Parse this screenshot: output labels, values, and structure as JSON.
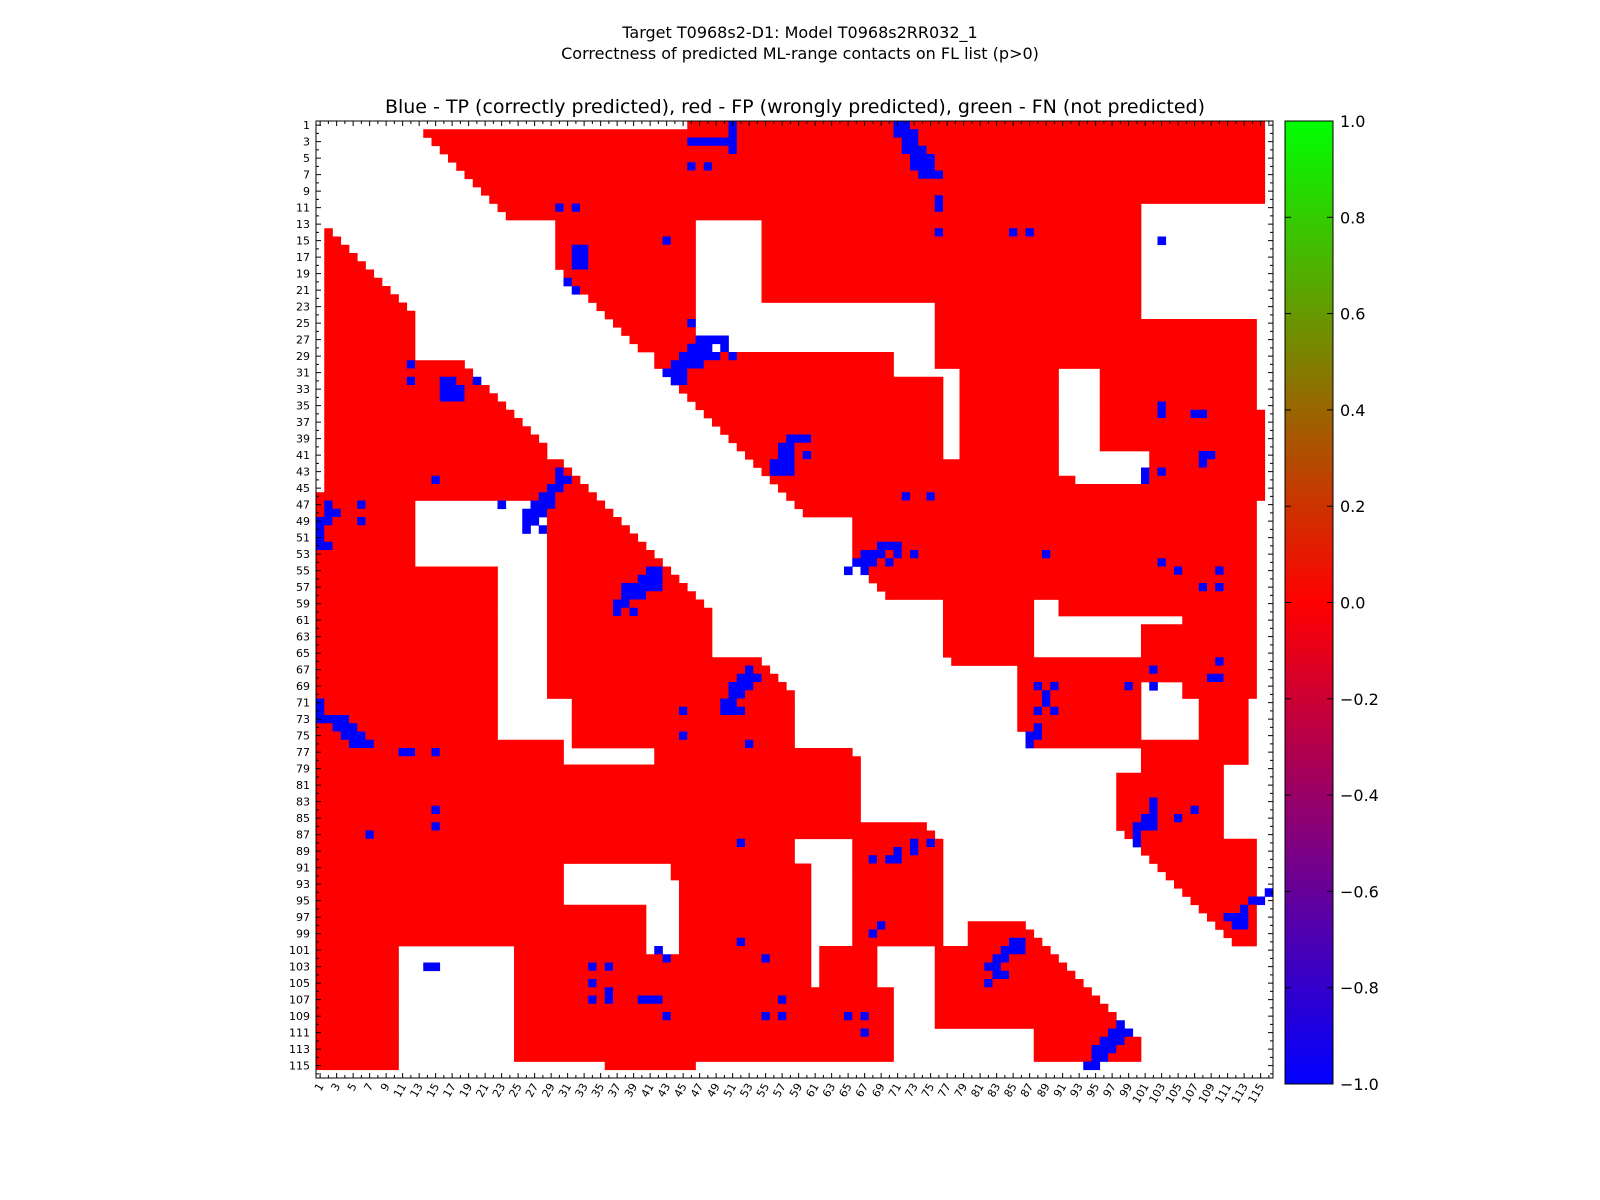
{
  "figure": {
    "title_line1": "Target T0968s2-D1: Model T0968s2RR032_1",
    "title_line2": "Correctness of predicted ML-range contacts on FL list (p>0)"
  },
  "chart_data": {
    "type": "heatmap",
    "title": "Blue - TP (correctly predicted), red - FP (wrongly predicted), green - FN (not predicted)",
    "n_residues": 116,
    "x_tick_labels": [
      "1",
      "3",
      "5",
      "7",
      "9",
      "11",
      "13",
      "15",
      "17",
      "19",
      "21",
      "23",
      "25",
      "27",
      "29",
      "31",
      "33",
      "35",
      "37",
      "39",
      "41",
      "43",
      "45",
      "47",
      "49",
      "51",
      "53",
      "55",
      "57",
      "59",
      "61",
      "63",
      "65",
      "67",
      "69",
      "71",
      "73",
      "75",
      "77",
      "79",
      "81",
      "83",
      "85",
      "87",
      "89",
      "91",
      "93",
      "95",
      "97",
      "99",
      "101",
      "103",
      "105",
      "107",
      "109",
      "111",
      "113",
      "115"
    ],
    "y_tick_labels": [
      "1",
      "3",
      "5",
      "7",
      "9",
      "11",
      "13",
      "15",
      "17",
      "19",
      "21",
      "23",
      "25",
      "27",
      "29",
      "31",
      "33",
      "35",
      "37",
      "39",
      "41",
      "43",
      "45",
      "47",
      "49",
      "51",
      "53",
      "55",
      "57",
      "59",
      "61",
      "63",
      "65",
      "67",
      "69",
      "71",
      "73",
      "75",
      "77",
      "79",
      "81",
      "83",
      "85",
      "87",
      "89",
      "91",
      "93",
      "95",
      "97",
      "99",
      "101",
      "103",
      "105",
      "107",
      "109",
      "111",
      "113",
      "115"
    ],
    "colorbar": {
      "min": -1.0,
      "max": 1.0,
      "tick_labels": [
        "1.0",
        "0.8",
        "0.6",
        "0.4",
        "0.2",
        "0.0",
        "−0.2",
        "−0.4",
        "−0.6",
        "−0.8",
        "−1.0"
      ],
      "colors": [
        "#0000ff",
        "#ff0000",
        "#00ff00"
      ]
    },
    "legend": {
      "TP": {
        "value": -1,
        "color": "#0000ff"
      },
      "FP": {
        "value": 0,
        "color": "#ff0000"
      },
      "FN": {
        "value": 1,
        "color": "#00ff00"
      }
    },
    "fp_blocks": [
      [
        13,
        2,
        30,
        12
      ],
      [
        2,
        13,
        12,
        30
      ],
      [
        2,
        14,
        12,
        60
      ],
      [
        14,
        2,
        60,
        12
      ],
      [
        13,
        30,
        28,
        46
      ],
      [
        30,
        13,
        46,
        28
      ],
      [
        2,
        62,
        8,
        115
      ],
      [
        62,
        2,
        115,
        8
      ],
      [
        8,
        55,
        22,
        78
      ],
      [
        55,
        8,
        78,
        22
      ],
      [
        10,
        76,
        30,
        100
      ],
      [
        76,
        10,
        100,
        30
      ],
      [
        25,
        96,
        40,
        114
      ],
      [
        96,
        25,
        114,
        40
      ],
      [
        29,
        42,
        48,
        70
      ],
      [
        42,
        29,
        70,
        48
      ],
      [
        32,
        56,
        44,
        76
      ],
      [
        56,
        32,
        76,
        44
      ],
      [
        36,
        102,
        46,
        115
      ],
      [
        102,
        36,
        115,
        46
      ],
      [
        44,
        66,
        58,
        92
      ],
      [
        66,
        44,
        92,
        58
      ],
      [
        45,
        91,
        60,
        106
      ],
      [
        91,
        45,
        106,
        60
      ],
      [
        42,
        71,
        54,
        87
      ],
      [
        71,
        42,
        87,
        54
      ],
      [
        55,
        32,
        66,
        44
      ],
      [
        32,
        55,
        44,
        66
      ],
      [
        58,
        77,
        66,
        87
      ],
      [
        77,
        58,
        87,
        66
      ],
      [
        62,
        101,
        68,
        113
      ],
      [
        101,
        62,
        113,
        68
      ],
      [
        65,
        108,
        78,
        113
      ],
      [
        108,
        65,
        78,
        113
      ],
      [
        66,
        45,
        78,
        56
      ],
      [
        45,
        66,
        56,
        78
      ],
      [
        68,
        87,
        76,
        100
      ],
      [
        87,
        68,
        100,
        76
      ],
      [
        76,
        101,
        90,
        110
      ],
      [
        101,
        76,
        110,
        90
      ],
      [
        86,
        66,
        100,
        75
      ],
      [
        66,
        86,
        75,
        100
      ],
      [
        89,
        111,
        98,
        113
      ],
      [
        111,
        89,
        113,
        98
      ],
      [
        98,
        80,
        106,
        88
      ],
      [
        80,
        98,
        88,
        106
      ],
      [
        100,
        88,
        114,
        100
      ],
      [
        88,
        100,
        100,
        114
      ],
      [
        102,
        36,
        114,
        56
      ],
      [
        36,
        102,
        56,
        114
      ],
      [
        79,
        30,
        90,
        44
      ],
      [
        30,
        79,
        44,
        90
      ],
      [
        106,
        56,
        114,
        70
      ],
      [
        56,
        106,
        70,
        114
      ],
      [
        46,
        1,
        115,
        10
      ],
      [
        1,
        46,
        10,
        115
      ]
    ],
    "tp_cells": [
      [
        1,
        51
      ],
      [
        1,
        71
      ],
      [
        1,
        72
      ],
      [
        2,
        51
      ],
      [
        2,
        71
      ],
      [
        2,
        72
      ],
      [
        2,
        73
      ],
      [
        3,
        46
      ],
      [
        3,
        47
      ],
      [
        3,
        48
      ],
      [
        3,
        49
      ],
      [
        3,
        50
      ],
      [
        3,
        51
      ],
      [
        3,
        72
      ],
      [
        3,
        73
      ],
      [
        4,
        51
      ],
      [
        4,
        72
      ],
      [
        4,
        73
      ],
      [
        4,
        74
      ],
      [
        5,
        73
      ],
      [
        5,
        74
      ],
      [
        5,
        75
      ],
      [
        6,
        46
      ],
      [
        6,
        48
      ],
      [
        6,
        73
      ],
      [
        6,
        74
      ],
      [
        6,
        75
      ],
      [
        7,
        74
      ],
      [
        7,
        75
      ],
      [
        7,
        76
      ],
      [
        10,
        76
      ],
      [
        11,
        30
      ],
      [
        11,
        32
      ],
      [
        11,
        76
      ],
      [
        14,
        76
      ],
      [
        14,
        85
      ],
      [
        14,
        87
      ],
      [
        15,
        43
      ],
      [
        15,
        103
      ],
      [
        16,
        32
      ],
      [
        16,
        33
      ],
      [
        17,
        32
      ],
      [
        17,
        33
      ],
      [
        18,
        32
      ],
      [
        18,
        33
      ],
      [
        20,
        31
      ],
      [
        21,
        32
      ],
      [
        25,
        46
      ],
      [
        27,
        47
      ],
      [
        27,
        48
      ],
      [
        27,
        49
      ],
      [
        27,
        50
      ],
      [
        28,
        46
      ],
      [
        28,
        47
      ],
      [
        28,
        48
      ],
      [
        28,
        50
      ],
      [
        29,
        45
      ],
      [
        29,
        46
      ],
      [
        29,
        47
      ],
      [
        29,
        48
      ],
      [
        29,
        49
      ],
      [
        29,
        51
      ],
      [
        30,
        44
      ],
      [
        30,
        45
      ],
      [
        30,
        46
      ],
      [
        30,
        47
      ],
      [
        31,
        43
      ],
      [
        31,
        44
      ],
      [
        31,
        45
      ],
      [
        32,
        44
      ],
      [
        32,
        45
      ],
      [
        30,
        12
      ],
      [
        32,
        12
      ],
      [
        32,
        16
      ],
      [
        32,
        17
      ],
      [
        32,
        20
      ],
      [
        33,
        16
      ],
      [
        33,
        17
      ],
      [
        33,
        18
      ],
      [
        34,
        16
      ],
      [
        34,
        17
      ],
      [
        34,
        18
      ],
      [
        39,
        58
      ],
      [
        39,
        59
      ],
      [
        39,
        60
      ],
      [
        40,
        57
      ],
      [
        40,
        58
      ],
      [
        41,
        57
      ],
      [
        41,
        58
      ],
      [
        41,
        60
      ],
      [
        42,
        56
      ],
      [
        42,
        57
      ],
      [
        42,
        58
      ],
      [
        43,
        56
      ],
      [
        43,
        57
      ],
      [
        43,
        58
      ],
      [
        43,
        30
      ],
      [
        44,
        30
      ],
      [
        44,
        31
      ],
      [
        45,
        29
      ],
      [
        45,
        30
      ],
      [
        46,
        28
      ],
      [
        46,
        29
      ],
      [
        47,
        27
      ],
      [
        47,
        28
      ],
      [
        47,
        29
      ],
      [
        48,
        26
      ],
      [
        48,
        27
      ],
      [
        48,
        28
      ],
      [
        49,
        26
      ],
      [
        49,
        27
      ],
      [
        50,
        26
      ],
      [
        50,
        28
      ],
      [
        44,
        15
      ],
      [
        47,
        2
      ],
      [
        47,
        6
      ],
      [
        48,
        2
      ],
      [
        48,
        3
      ],
      [
        49,
        1
      ],
      [
        49,
        2
      ],
      [
        49,
        6
      ],
      [
        50,
        1
      ],
      [
        51,
        1
      ],
      [
        52,
        1
      ],
      [
        52,
        2
      ],
      [
        47,
        23
      ],
      [
        52,
        69
      ],
      [
        52,
        70
      ],
      [
        52,
        71
      ],
      [
        53,
        67
      ],
      [
        53,
        68
      ],
      [
        53,
        69
      ],
      [
        53,
        71
      ],
      [
        53,
        73
      ],
      [
        54,
        66
      ],
      [
        54,
        67
      ],
      [
        54,
        68
      ],
      [
        54,
        70
      ],
      [
        55,
        65
      ],
      [
        55,
        67
      ],
      [
        46,
        72
      ],
      [
        46,
        75
      ],
      [
        53,
        89
      ],
      [
        54,
        103
      ],
      [
        55,
        105
      ],
      [
        55,
        110
      ],
      [
        55,
        41
      ],
      [
        55,
        42
      ],
      [
        56,
        40
      ],
      [
        56,
        41
      ],
      [
        56,
        42
      ],
      [
        57,
        38
      ],
      [
        57,
        39
      ],
      [
        57,
        40
      ],
      [
        57,
        41
      ],
      [
        57,
        42
      ],
      [
        58,
        38
      ],
      [
        58,
        39
      ],
      [
        58,
        40
      ],
      [
        59,
        37
      ],
      [
        59,
        38
      ],
      [
        60,
        37
      ],
      [
        60,
        39
      ],
      [
        57,
        108
      ],
      [
        57,
        110
      ],
      [
        41,
        108
      ],
      [
        42,
        108
      ],
      [
        43,
        101
      ],
      [
        43,
        103
      ],
      [
        44,
        101
      ],
      [
        36,
        103
      ],
      [
        35,
        103
      ],
      [
        36,
        107
      ],
      [
        36,
        108
      ],
      [
        41,
        109
      ],
      [
        67,
        53
      ],
      [
        68,
        52
      ],
      [
        68,
        53
      ],
      [
        68,
        54
      ],
      [
        69,
        51
      ],
      [
        69,
        52
      ],
      [
        69,
        53
      ],
      [
        70,
        51
      ],
      [
        70,
        52
      ],
      [
        71,
        50
      ],
      [
        71,
        51
      ],
      [
        72,
        50
      ],
      [
        72,
        51
      ],
      [
        72,
        52
      ],
      [
        72,
        45
      ],
      [
        75,
        45
      ],
      [
        76,
        53
      ],
      [
        71,
        1
      ],
      [
        72,
        1
      ],
      [
        73,
        1
      ],
      [
        73,
        2
      ],
      [
        73,
        3
      ],
      [
        73,
        4
      ],
      [
        74,
        3
      ],
      [
        74,
        4
      ],
      [
        74,
        5
      ],
      [
        75,
        4
      ],
      [
        75,
        5
      ],
      [
        75,
        6
      ],
      [
        76,
        5
      ],
      [
        76,
        6
      ],
      [
        76,
        7
      ],
      [
        77,
        11
      ],
      [
        77,
        12
      ],
      [
        77,
        15
      ],
      [
        87,
        7
      ],
      [
        84,
        15
      ],
      [
        86,
        15
      ],
      [
        69,
        88
      ],
      [
        69,
        90
      ],
      [
        69,
        99
      ],
      [
        69,
        102
      ],
      [
        67,
        102
      ],
      [
        70,
        89
      ],
      [
        71,
        89
      ],
      [
        72,
        88
      ],
      [
        72,
        90
      ],
      [
        74,
        88
      ],
      [
        75,
        87
      ],
      [
        75,
        88
      ],
      [
        76,
        87
      ],
      [
        66,
        110
      ],
      [
        68,
        109
      ],
      [
        68,
        110
      ],
      [
        83,
        102
      ],
      [
        84,
        102
      ],
      [
        84,
        107
      ],
      [
        85,
        101
      ],
      [
        85,
        102
      ],
      [
        85,
        105
      ],
      [
        86,
        100
      ],
      [
        86,
        101
      ],
      [
        86,
        102
      ],
      [
        87,
        100
      ],
      [
        88,
        100
      ],
      [
        88,
        73
      ],
      [
        88,
        75
      ],
      [
        88,
        52
      ],
      [
        89,
        71
      ],
      [
        89,
        73
      ],
      [
        90,
        68
      ],
      [
        90,
        70
      ],
      [
        90,
        71
      ],
      [
        94,
        116
      ],
      [
        95,
        114
      ],
      [
        95,
        115
      ],
      [
        96,
        113
      ],
      [
        97,
        111
      ],
      [
        97,
        112
      ],
      [
        97,
        113
      ],
      [
        98,
        112
      ],
      [
        98,
        113
      ],
      [
        98,
        69
      ],
      [
        99,
        68
      ],
      [
        100,
        52
      ],
      [
        100,
        85
      ],
      [
        100,
        86
      ],
      [
        101,
        84
      ],
      [
        101,
        85
      ],
      [
        101,
        86
      ],
      [
        102,
        55
      ],
      [
        102,
        83
      ],
      [
        102,
        84
      ],
      [
        103,
        82
      ],
      [
        103,
        83
      ],
      [
        104,
        83
      ],
      [
        104,
        84
      ],
      [
        105,
        82
      ],
      [
        101,
        42
      ],
      [
        102,
        43
      ],
      [
        103,
        14
      ],
      [
        103,
        15
      ],
      [
        103,
        34
      ],
      [
        103,
        36
      ],
      [
        105,
        34
      ],
      [
        106,
        36
      ],
      [
        107,
        34
      ],
      [
        107,
        36
      ],
      [
        107,
        40
      ],
      [
        107,
        41
      ],
      [
        107,
        42
      ],
      [
        107,
        57
      ],
      [
        109,
        43
      ],
      [
        109,
        55
      ],
      [
        109,
        57
      ],
      [
        109,
        65
      ],
      [
        109,
        67
      ],
      [
        111,
        67
      ],
      [
        110,
        98
      ],
      [
        111,
        97
      ],
      [
        111,
        98
      ],
      [
        111,
        99
      ],
      [
        112,
        96
      ],
      [
        112,
        97
      ],
      [
        112,
        98
      ],
      [
        113,
        95
      ],
      [
        113,
        96
      ],
      [
        113,
        97
      ],
      [
        114,
        95
      ],
      [
        114,
        96
      ],
      [
        115,
        94
      ],
      [
        115,
        95
      ]
    ]
  }
}
